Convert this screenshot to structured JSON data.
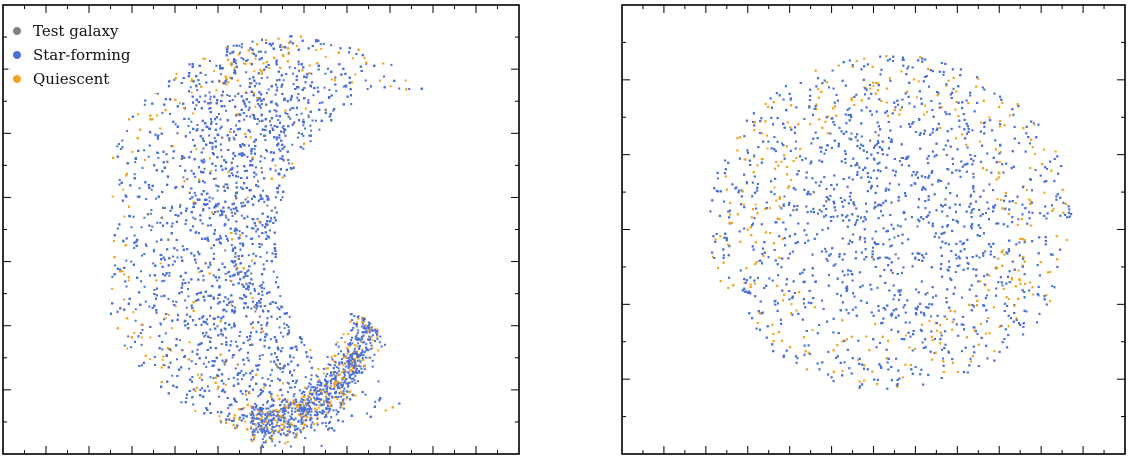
{
  "chart_data": [
    {
      "type": "scatter",
      "panel": "left",
      "title": "",
      "xlabel": "",
      "ylabel": "",
      "tick_labels": "none",
      "xlim": [
        0,
        100
      ],
      "ylim": [
        0,
        100
      ],
      "grid": false,
      "legend": {
        "placement": "top-left",
        "entries": [
          {
            "label": "Test galaxy",
            "color": "#808080"
          },
          {
            "label": "Star-forming",
            "color": "#4a6fd9"
          },
          {
            "label": "Quiescent",
            "color": "#f2a51c"
          }
        ]
      },
      "series": [
        {
          "name": "Test galaxy",
          "color": "#808080",
          "points": "thousands of dense points (embedding), shape: C/crescent"
        },
        {
          "name": "Star-forming",
          "color": "#4a6fd9"
        },
        {
          "name": "Quiescent",
          "color": "#f2a51c"
        }
      ],
      "shape": "crescent"
    },
    {
      "type": "scatter",
      "panel": "right",
      "title": "",
      "xlabel": "",
      "ylabel": "",
      "tick_labels": "none",
      "xlim": [
        0,
        100
      ],
      "ylim": [
        0,
        100
      ],
      "grid": false,
      "series": [
        {
          "name": "Test galaxy",
          "color": "#808080"
        },
        {
          "name": "Star-forming",
          "color": "#4a6fd9"
        },
        {
          "name": "Quiescent",
          "color": "#f2a51c"
        }
      ],
      "shape": "disk"
    }
  ]
}
